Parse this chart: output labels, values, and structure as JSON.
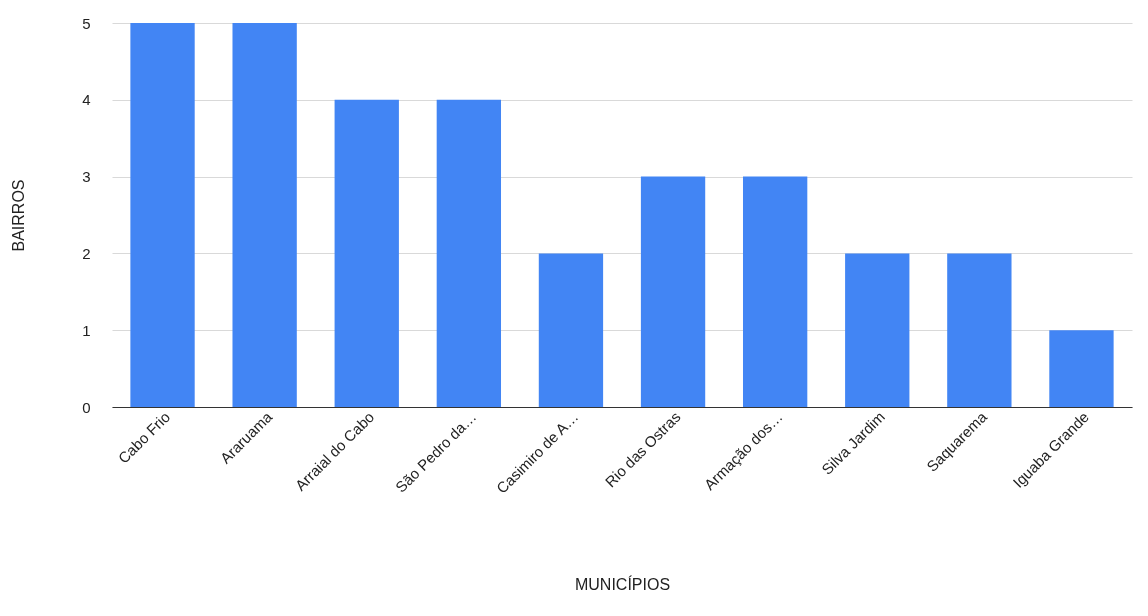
{
  "chart_data": {
    "type": "bar",
    "xlabel": "MUNICÍPIOS",
    "ylabel": "BAIRROS",
    "categories": [
      "Cabo Frio",
      "Araruama",
      "Arraial do Cabo",
      "São Pedro da…",
      "Casimiro de A…",
      "Rio das Ostras",
      "Armação dos…",
      "Silva Jardim",
      "Saquarema",
      "Iguaba Grande"
    ],
    "values": [
      5,
      5,
      4,
      4,
      2,
      3,
      3,
      2,
      2,
      1
    ],
    "color": "#4285f4",
    "ylim": [
      0,
      5
    ],
    "yticks": [
      0,
      1,
      2,
      3,
      4,
      5
    ],
    "grid": "y"
  }
}
